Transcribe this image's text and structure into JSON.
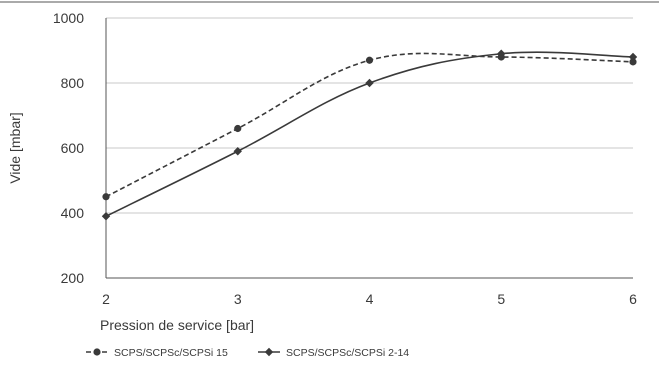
{
  "chart_data": {
    "type": "line",
    "title": "",
    "xlabel": "Pression de service [bar]",
    "ylabel": "Vide [mbar]",
    "x": [
      2,
      3,
      4,
      5,
      6
    ],
    "xlim": [
      2,
      6
    ],
    "ylim": [
      200,
      1000
    ],
    "yticks": [
      200,
      400,
      600,
      800,
      1000
    ],
    "grid": true,
    "legend_position": "bottom-left",
    "series": [
      {
        "name": "SCPS/SCPSc/SCPSi 15",
        "values": [
          450,
          660,
          870,
          880,
          865
        ],
        "color": "#3a3a3a",
        "line_style": "dashed",
        "marker": "circle"
      },
      {
        "name": "SCPS/SCPSc/SCPSi 2-14",
        "values": [
          390,
          590,
          800,
          890,
          880
        ],
        "color": "#3a3a3a",
        "line_style": "solid",
        "marker": "diamond"
      }
    ]
  }
}
